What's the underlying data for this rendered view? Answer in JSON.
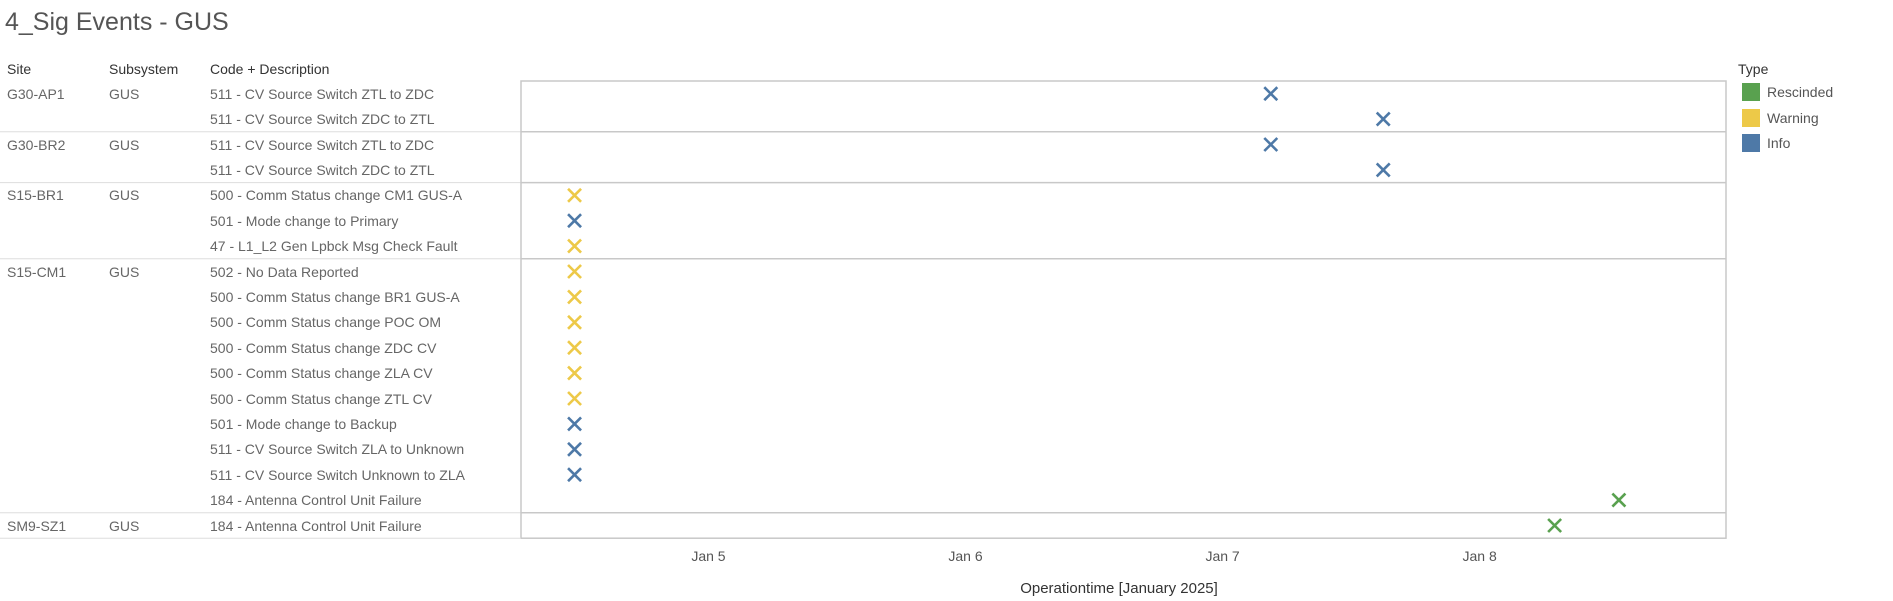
{
  "title": "4_Sig Events - GUS",
  "headers": {
    "site": "Site",
    "subsystem": "Subsystem",
    "code": "Code + Description"
  },
  "legend": {
    "title": "Type",
    "items": [
      {
        "label": "Rescinded",
        "color": "#59a14f"
      },
      {
        "label": "Warning",
        "color": "#edc948"
      },
      {
        "label": "Info",
        "color": "#4e79a7"
      }
    ]
  },
  "chart_data": {
    "type": "scatter",
    "marker": "x",
    "xlabel": "Operationtime [January 2025]",
    "xticks": [
      "Jan 5",
      "Jan 6",
      "Jan 7",
      "Jan 8"
    ],
    "xlim": [
      "2025-01-04 06:30",
      "2025-01-08 23:00"
    ],
    "groups": [
      {
        "site": "G30-AP1",
        "subsystem": "GUS",
        "rows": [
          {
            "code": "511 - CV Source Switch ZTL to ZDC",
            "x": "2025-01-07 04:30",
            "type": "Info"
          },
          {
            "code": "511 - CV Source Switch ZDC to ZTL",
            "x": "2025-01-07 15:00",
            "type": "Info"
          }
        ]
      },
      {
        "site": "G30-BR2",
        "subsystem": "GUS",
        "rows": [
          {
            "code": "511 - CV Source Switch ZTL to ZDC",
            "x": "2025-01-07 04:30",
            "type": "Info"
          },
          {
            "code": "511 - CV Source Switch ZDC to ZTL",
            "x": "2025-01-07 15:00",
            "type": "Info"
          }
        ]
      },
      {
        "site": "S15-BR1",
        "subsystem": "GUS",
        "rows": [
          {
            "code": "500 - Comm Status change CM1 GUS-A",
            "x": "2025-01-04 11:30",
            "type": "Warning"
          },
          {
            "code": "501 - Mode change to Primary",
            "x": "2025-01-04 11:30",
            "type": "Info"
          },
          {
            "code": "47 - L1_L2 Gen Lpbck Msg Check Fault",
            "x": "2025-01-04 11:30",
            "type": "Warning"
          }
        ]
      },
      {
        "site": "S15-CM1",
        "subsystem": "GUS",
        "rows": [
          {
            "code": "502 - No Data Reported",
            "x": "2025-01-04 11:30",
            "type": "Warning"
          },
          {
            "code": "500 - Comm Status change BR1 GUS-A",
            "x": "2025-01-04 11:30",
            "type": "Warning"
          },
          {
            "code": "500 - Comm Status change POC OM",
            "x": "2025-01-04 11:30",
            "type": "Warning"
          },
          {
            "code": "500 - Comm Status change ZDC CV",
            "x": "2025-01-04 11:30",
            "type": "Warning"
          },
          {
            "code": "500 - Comm Status change ZLA CV",
            "x": "2025-01-04 11:30",
            "type": "Warning"
          },
          {
            "code": "500 - Comm Status change ZTL CV",
            "x": "2025-01-04 11:30",
            "type": "Warning"
          },
          {
            "code": "501 - Mode change to Backup",
            "x": "2025-01-04 11:30",
            "type": "Info"
          },
          {
            "code": "511 - CV Source Switch ZLA to Unknown",
            "x": "2025-01-04 11:30",
            "type": "Info"
          },
          {
            "code": "511 - CV Source Switch Unknown to ZLA",
            "x": "2025-01-04 11:30",
            "type": "Info"
          },
          {
            "code": "184 - Antenna Control Unit Failure",
            "x": "2025-01-08 13:00",
            "type": "Rescinded"
          }
        ]
      },
      {
        "site": "SM9-SZ1",
        "subsystem": "GUS",
        "rows": [
          {
            "code": "184 - Antenna Control Unit Failure",
            "x": "2025-01-08 07:00",
            "type": "Rescinded"
          }
        ]
      }
    ]
  }
}
